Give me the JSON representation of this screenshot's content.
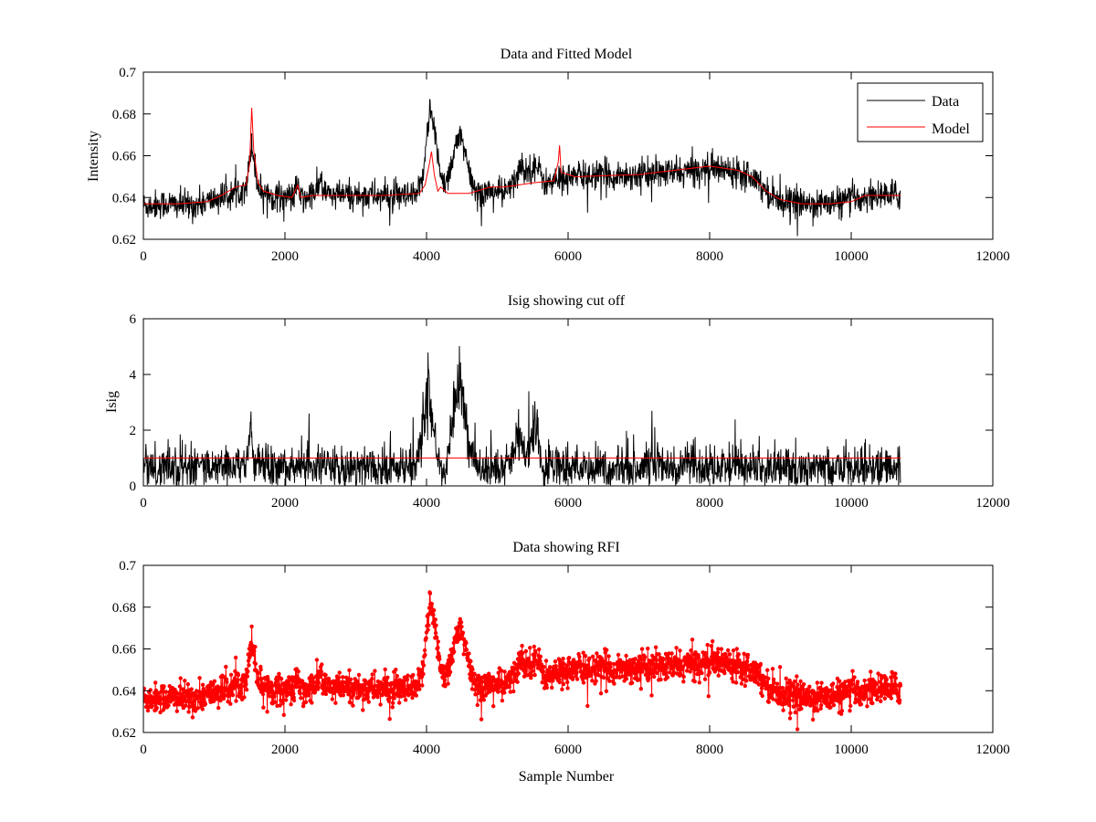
{
  "chart_data": [
    {
      "type": "line",
      "title": "Data and Fitted Model",
      "xlabel": "",
      "ylabel": "Intensity",
      "xlim": [
        0,
        12000
      ],
      "ylim": [
        0.62,
        0.7
      ],
      "xticks": [
        "0",
        "2000",
        "4000",
        "6000",
        "8000",
        "10000",
        "12000"
      ],
      "yticks": [
        "0.62",
        "0.64",
        "0.66",
        "0.68",
        "0.7"
      ],
      "legend": {
        "position": "top-right",
        "entries": [
          "Data",
          "Model"
        ]
      },
      "series": [
        {
          "name": "Data",
          "color": "#000000",
          "style": "noisy-line",
          "n_points": 10700,
          "noise_amplitude": 0.006,
          "baseline": [
            [
              0,
              0.636
            ],
            [
              300,
              0.637
            ],
            [
              700,
              0.636
            ],
            [
              1000,
              0.639
            ],
            [
              1300,
              0.642
            ],
            [
              1450,
              0.646
            ],
            [
              1500,
              0.655
            ],
            [
              1530,
              0.668
            ],
            [
              1560,
              0.658
            ],
            [
              1620,
              0.645
            ],
            [
              1800,
              0.641
            ],
            [
              2100,
              0.64
            ],
            [
              2180,
              0.645
            ],
            [
              2250,
              0.638
            ],
            [
              2350,
              0.641
            ],
            [
              2450,
              0.643
            ],
            [
              2520,
              0.649
            ],
            [
              2560,
              0.642
            ],
            [
              2700,
              0.641
            ],
            [
              3200,
              0.641
            ],
            [
              3800,
              0.64
            ],
            [
              3900,
              0.642
            ],
            [
              3960,
              0.654
            ],
            [
              4000,
              0.67
            ],
            [
              4050,
              0.683
            ],
            [
              4100,
              0.674
            ],
            [
              4180,
              0.655
            ],
            [
              4260,
              0.646
            ],
            [
              4350,
              0.656
            ],
            [
              4450,
              0.67
            ],
            [
              4520,
              0.664
            ],
            [
              4600,
              0.652
            ],
            [
              4700,
              0.642
            ],
            [
              4900,
              0.643
            ],
            [
              5100,
              0.642
            ],
            [
              5250,
              0.647
            ],
            [
              5330,
              0.656
            ],
            [
              5420,
              0.652
            ],
            [
              5520,
              0.656
            ],
            [
              5600,
              0.652
            ],
            [
              5700,
              0.646
            ],
            [
              5900,
              0.649
            ],
            [
              6000,
              0.65
            ],
            [
              7000,
              0.651
            ],
            [
              7600,
              0.652
            ],
            [
              8000,
              0.654
            ],
            [
              8400,
              0.653
            ],
            [
              8650,
              0.65
            ],
            [
              8800,
              0.643
            ],
            [
              9000,
              0.639
            ],
            [
              9300,
              0.637
            ],
            [
              9700,
              0.637
            ],
            [
              10000,
              0.639
            ],
            [
              10300,
              0.641
            ],
            [
              10700,
              0.641
            ]
          ]
        },
        {
          "name": "Model",
          "color": "#ff0000",
          "style": "line",
          "points": [
            [
              0,
              0.637
            ],
            [
              500,
              0.637
            ],
            [
              900,
              0.638
            ],
            [
              1100,
              0.641
            ],
            [
              1300,
              0.645
            ],
            [
              1450,
              0.646
            ],
            [
              1500,
              0.656
            ],
            [
              1530,
              0.683
            ],
            [
              1560,
              0.662
            ],
            [
              1620,
              0.647
            ],
            [
              1700,
              0.643
            ],
            [
              1900,
              0.641
            ],
            [
              2100,
              0.64
            ],
            [
              2180,
              0.646
            ],
            [
              2220,
              0.64
            ],
            [
              2400,
              0.641
            ],
            [
              2600,
              0.641
            ],
            [
              3400,
              0.641
            ],
            [
              3900,
              0.642
            ],
            [
              3980,
              0.646
            ],
            [
              4040,
              0.656
            ],
            [
              4070,
              0.662
            ],
            [
              4110,
              0.651
            ],
            [
              4160,
              0.643
            ],
            [
              4200,
              0.645
            ],
            [
              4300,
              0.642
            ],
            [
              4600,
              0.642
            ],
            [
              4900,
              0.645
            ],
            [
              5100,
              0.645
            ],
            [
              5300,
              0.646
            ],
            [
              5500,
              0.647
            ],
            [
              5800,
              0.648
            ],
            [
              5860,
              0.657
            ],
            [
              5880,
              0.665
            ],
            [
              5900,
              0.652
            ],
            [
              6100,
              0.65
            ],
            [
              7000,
              0.651
            ],
            [
              7500,
              0.653
            ],
            [
              8000,
              0.655
            ],
            [
              8400,
              0.653
            ],
            [
              8600,
              0.65
            ],
            [
              8800,
              0.643
            ],
            [
              9000,
              0.639
            ],
            [
              9300,
              0.637
            ],
            [
              9700,
              0.637
            ],
            [
              10000,
              0.638
            ],
            [
              10200,
              0.641
            ],
            [
              10700,
              0.641
            ]
          ]
        }
      ]
    },
    {
      "type": "line",
      "title": "Isig showing cut off",
      "xlabel": "",
      "ylabel": "Isig",
      "xlim": [
        0,
        12000
      ],
      "ylim": [
        0,
        6
      ],
      "xticks": [
        "0",
        "2000",
        "4000",
        "6000",
        "8000",
        "10000",
        "12000"
      ],
      "yticks": [
        "0",
        "2",
        "4",
        "6"
      ],
      "series": [
        {
          "color": "#000000",
          "style": "noisy-abs",
          "n_points": 10700,
          "baseline": [
            [
              0,
              0.8
            ],
            [
              1000,
              0.8
            ],
            [
              1450,
              0.9
            ],
            [
              1520,
              2.5
            ],
            [
              1560,
              1.0
            ],
            [
              1700,
              0.8
            ],
            [
              3800,
              0.8
            ],
            [
              3900,
              1.2
            ],
            [
              3960,
              3.0
            ],
            [
              4020,
              3.9
            ],
            [
              4100,
              2.6
            ],
            [
              4180,
              0.5
            ],
            [
              4260,
              0.5
            ],
            [
              4350,
              2.5
            ],
            [
              4440,
              4.3
            ],
            [
              4500,
              4.0
            ],
            [
              4580,
              2.0
            ],
            [
              4700,
              0.8
            ],
            [
              5100,
              0.8
            ],
            [
              5200,
              1.2
            ],
            [
              5300,
              2.4
            ],
            [
              5400,
              1.0
            ],
            [
              5500,
              2.4
            ],
            [
              5560,
              2.8
            ],
            [
              5620,
              0.9
            ],
            [
              5800,
              0.8
            ],
            [
              10700,
              0.8
            ]
          ]
        },
        {
          "color": "#ff0000",
          "style": "line",
          "points": [
            [
              0,
              1.0
            ],
            [
              10700,
              1.0
            ]
          ]
        }
      ]
    },
    {
      "type": "line",
      "title": "Data showing RFI",
      "xlabel": "Sample Number",
      "ylabel": "",
      "xlim": [
        0,
        12000
      ],
      "ylim": [
        0.62,
        0.7
      ],
      "xticks": [
        "0",
        "2000",
        "4000",
        "6000",
        "8000",
        "10000",
        "12000"
      ],
      "yticks": [
        "0.62",
        "0.64",
        "0.66",
        "0.68",
        "0.7"
      ],
      "series": [
        {
          "color": "#ff0000",
          "style": "markers",
          "marker": "dot",
          "n_points": 10700,
          "noise_amplitude": 0.006,
          "baseline_ref": "same as Data series in first subplot"
        }
      ]
    }
  ]
}
